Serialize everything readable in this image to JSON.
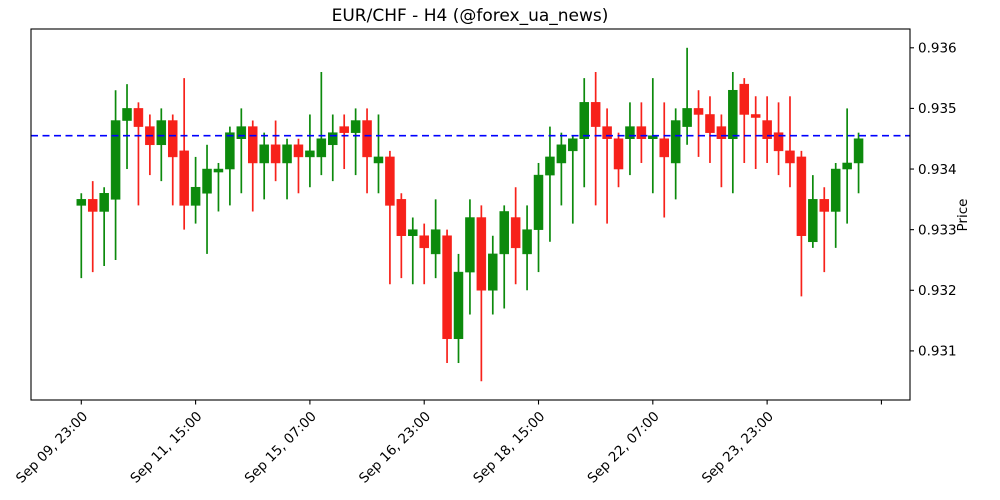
{
  "title": "EUR/CHF - H4 (@forex_ua_news)",
  "y_axis": {
    "label": "Price",
    "ticks": [
      "0.936",
      "0.935",
      "0.934",
      "0.933",
      "0.932",
      "0.931"
    ]
  },
  "x_axis": {
    "tick_labels": [
      "Sep 09, 23:00",
      "Sep 11, 15:00",
      "Sep 15, 07:00",
      "Sep 16, 23:00",
      "Sep 18, 15:00",
      "Sep 22, 07:00",
      "Sep 23, 23:00",
      ""
    ],
    "tick_bars": [
      0,
      10,
      20,
      30,
      40,
      50,
      60,
      70
    ]
  },
  "reference_line": {
    "price": 0.93455,
    "color": "#0000ff",
    "style": "dashed"
  },
  "colors": {
    "up": "#0c8a0c",
    "down": "#f7211a",
    "frame": "#000000",
    "background": "#ffffff"
  },
  "chart_data": {
    "type": "candlestick",
    "title": "EUR/CHF - H4 (@forex_ua_news)",
    "symbol": "EUR/CHF",
    "timeframe": "H4",
    "ylabel": "Price",
    "grid": false,
    "legend": false,
    "xlim": [
      -4.4,
      72.5
    ],
    "ylim": [
      0.93019,
      0.93631
    ],
    "xtick_bars": [
      0,
      10,
      20,
      30,
      40,
      50,
      60,
      70
    ],
    "xtick_labels": [
      "Sep 09, 23:00",
      "Sep 11, 15:00",
      "Sep 15, 07:00",
      "Sep 16, 23:00",
      "Sep 18, 15:00",
      "Sep 22, 07:00",
      "Sep 23, 23:00",
      ""
    ],
    "ytick_values": [
      0.936,
      0.935,
      0.934,
      0.933,
      0.932,
      0.931
    ],
    "hline": 0.93455,
    "ohlc_format": [
      "open",
      "high",
      "low",
      "close"
    ],
    "candles": [
      [
        0.9334,
        0.9336,
        0.9322,
        0.9335
      ],
      [
        0.9335,
        0.9338,
        0.9323,
        0.9333
      ],
      [
        0.9333,
        0.9337,
        0.9324,
        0.9336
      ],
      [
        0.9335,
        0.9353,
        0.9325,
        0.9348
      ],
      [
        0.9348,
        0.9354,
        0.934,
        0.935
      ],
      [
        0.935,
        0.9351,
        0.9334,
        0.9347
      ],
      [
        0.9347,
        0.9349,
        0.9339,
        0.9344
      ],
      [
        0.9344,
        0.935,
        0.9338,
        0.9348
      ],
      [
        0.9348,
        0.9349,
        0.9334,
        0.9342
      ],
      [
        0.9343,
        0.9355,
        0.933,
        0.9334
      ],
      [
        0.9334,
        0.9342,
        0.9331,
        0.9337
      ],
      [
        0.9336,
        0.9344,
        0.9326,
        0.934
      ],
      [
        0.93395,
        0.9341,
        0.9333,
        0.934
      ],
      [
        0.934,
        0.9347,
        0.9334,
        0.9346
      ],
      [
        0.9345,
        0.935,
        0.9336,
        0.9347
      ],
      [
        0.9347,
        0.9348,
        0.9333,
        0.9341
      ],
      [
        0.9341,
        0.9346,
        0.9335,
        0.9344
      ],
      [
        0.9344,
        0.9348,
        0.9338,
        0.9341
      ],
      [
        0.9341,
        0.9345,
        0.9335,
        0.9344
      ],
      [
        0.9344,
        0.9345,
        0.9336,
        0.9342
      ],
      [
        0.9342,
        0.9349,
        0.9337,
        0.9343
      ],
      [
        0.9342,
        0.9356,
        0.9339,
        0.9345
      ],
      [
        0.9344,
        0.9349,
        0.9338,
        0.9346
      ],
      [
        0.9347,
        0.9349,
        0.934,
        0.9346
      ],
      [
        0.9346,
        0.935,
        0.9339,
        0.9348
      ],
      [
        0.9348,
        0.935,
        0.9336,
        0.9342
      ],
      [
        0.9341,
        0.9349,
        0.9336,
        0.9342
      ],
      [
        0.9342,
        0.9343,
        0.9321,
        0.9334
      ],
      [
        0.9335,
        0.9336,
        0.9322,
        0.9329
      ],
      [
        0.9329,
        0.9332,
        0.9321,
        0.933
      ],
      [
        0.9329,
        0.9331,
        0.9321,
        0.9327
      ],
      [
        0.9326,
        0.9335,
        0.9322,
        0.933
      ],
      [
        0.9329,
        0.933,
        0.9308,
        0.9312
      ],
      [
        0.9312,
        0.9326,
        0.9308,
        0.9323
      ],
      [
        0.9323,
        0.9335,
        0.9316,
        0.9332
      ],
      [
        0.9332,
        0.9334,
        0.9305,
        0.932
      ],
      [
        0.932,
        0.9329,
        0.9316,
        0.9326
      ],
      [
        0.9326,
        0.9334,
        0.9317,
        0.9333
      ],
      [
        0.9332,
        0.9337,
        0.9321,
        0.9327
      ],
      [
        0.9326,
        0.9334,
        0.932,
        0.933
      ],
      [
        0.933,
        0.9341,
        0.9323,
        0.9339
      ],
      [
        0.9339,
        0.9347,
        0.9328,
        0.9342
      ],
      [
        0.9341,
        0.9346,
        0.9334,
        0.9344
      ],
      [
        0.9343,
        0.93455,
        0.9331,
        0.9345
      ],
      [
        0.9345,
        0.9355,
        0.9337,
        0.9351
      ],
      [
        0.9351,
        0.9356,
        0.9334,
        0.9347
      ],
      [
        0.9347,
        0.935,
        0.9331,
        0.9345
      ],
      [
        0.9345,
        0.9346,
        0.9337,
        0.934
      ],
      [
        0.9345,
        0.9351,
        0.9339,
        0.9347
      ],
      [
        0.9347,
        0.9351,
        0.9341,
        0.9345
      ],
      [
        0.9345,
        0.9355,
        0.9336,
        0.93455
      ],
      [
        0.9345,
        0.9351,
        0.9332,
        0.9342
      ],
      [
        0.9341,
        0.935,
        0.9335,
        0.9348
      ],
      [
        0.9347,
        0.936,
        0.9344,
        0.935
      ],
      [
        0.935,
        0.9353,
        0.9342,
        0.9349
      ],
      [
        0.9349,
        0.9352,
        0.9341,
        0.9346
      ],
      [
        0.9347,
        0.9349,
        0.9337,
        0.9345
      ],
      [
        0.9345,
        0.9356,
        0.9336,
        0.9353
      ],
      [
        0.9354,
        0.9355,
        0.9341,
        0.9349
      ],
      [
        0.9349,
        0.9352,
        0.934,
        0.93485
      ],
      [
        0.9348,
        0.9352,
        0.9341,
        0.9345
      ],
      [
        0.9346,
        0.9351,
        0.9339,
        0.9343
      ],
      [
        0.9343,
        0.9352,
        0.9337,
        0.9341
      ],
      [
        0.9342,
        0.9343,
        0.9319,
        0.9329
      ],
      [
        0.9328,
        0.9339,
        0.9327,
        0.9335
      ],
      [
        0.9335,
        0.9337,
        0.9323,
        0.9333
      ],
      [
        0.9333,
        0.9341,
        0.9327,
        0.934
      ],
      [
        0.934,
        0.935,
        0.9331,
        0.9341
      ],
      [
        0.9341,
        0.9346,
        0.9336,
        0.9345
      ]
    ]
  }
}
